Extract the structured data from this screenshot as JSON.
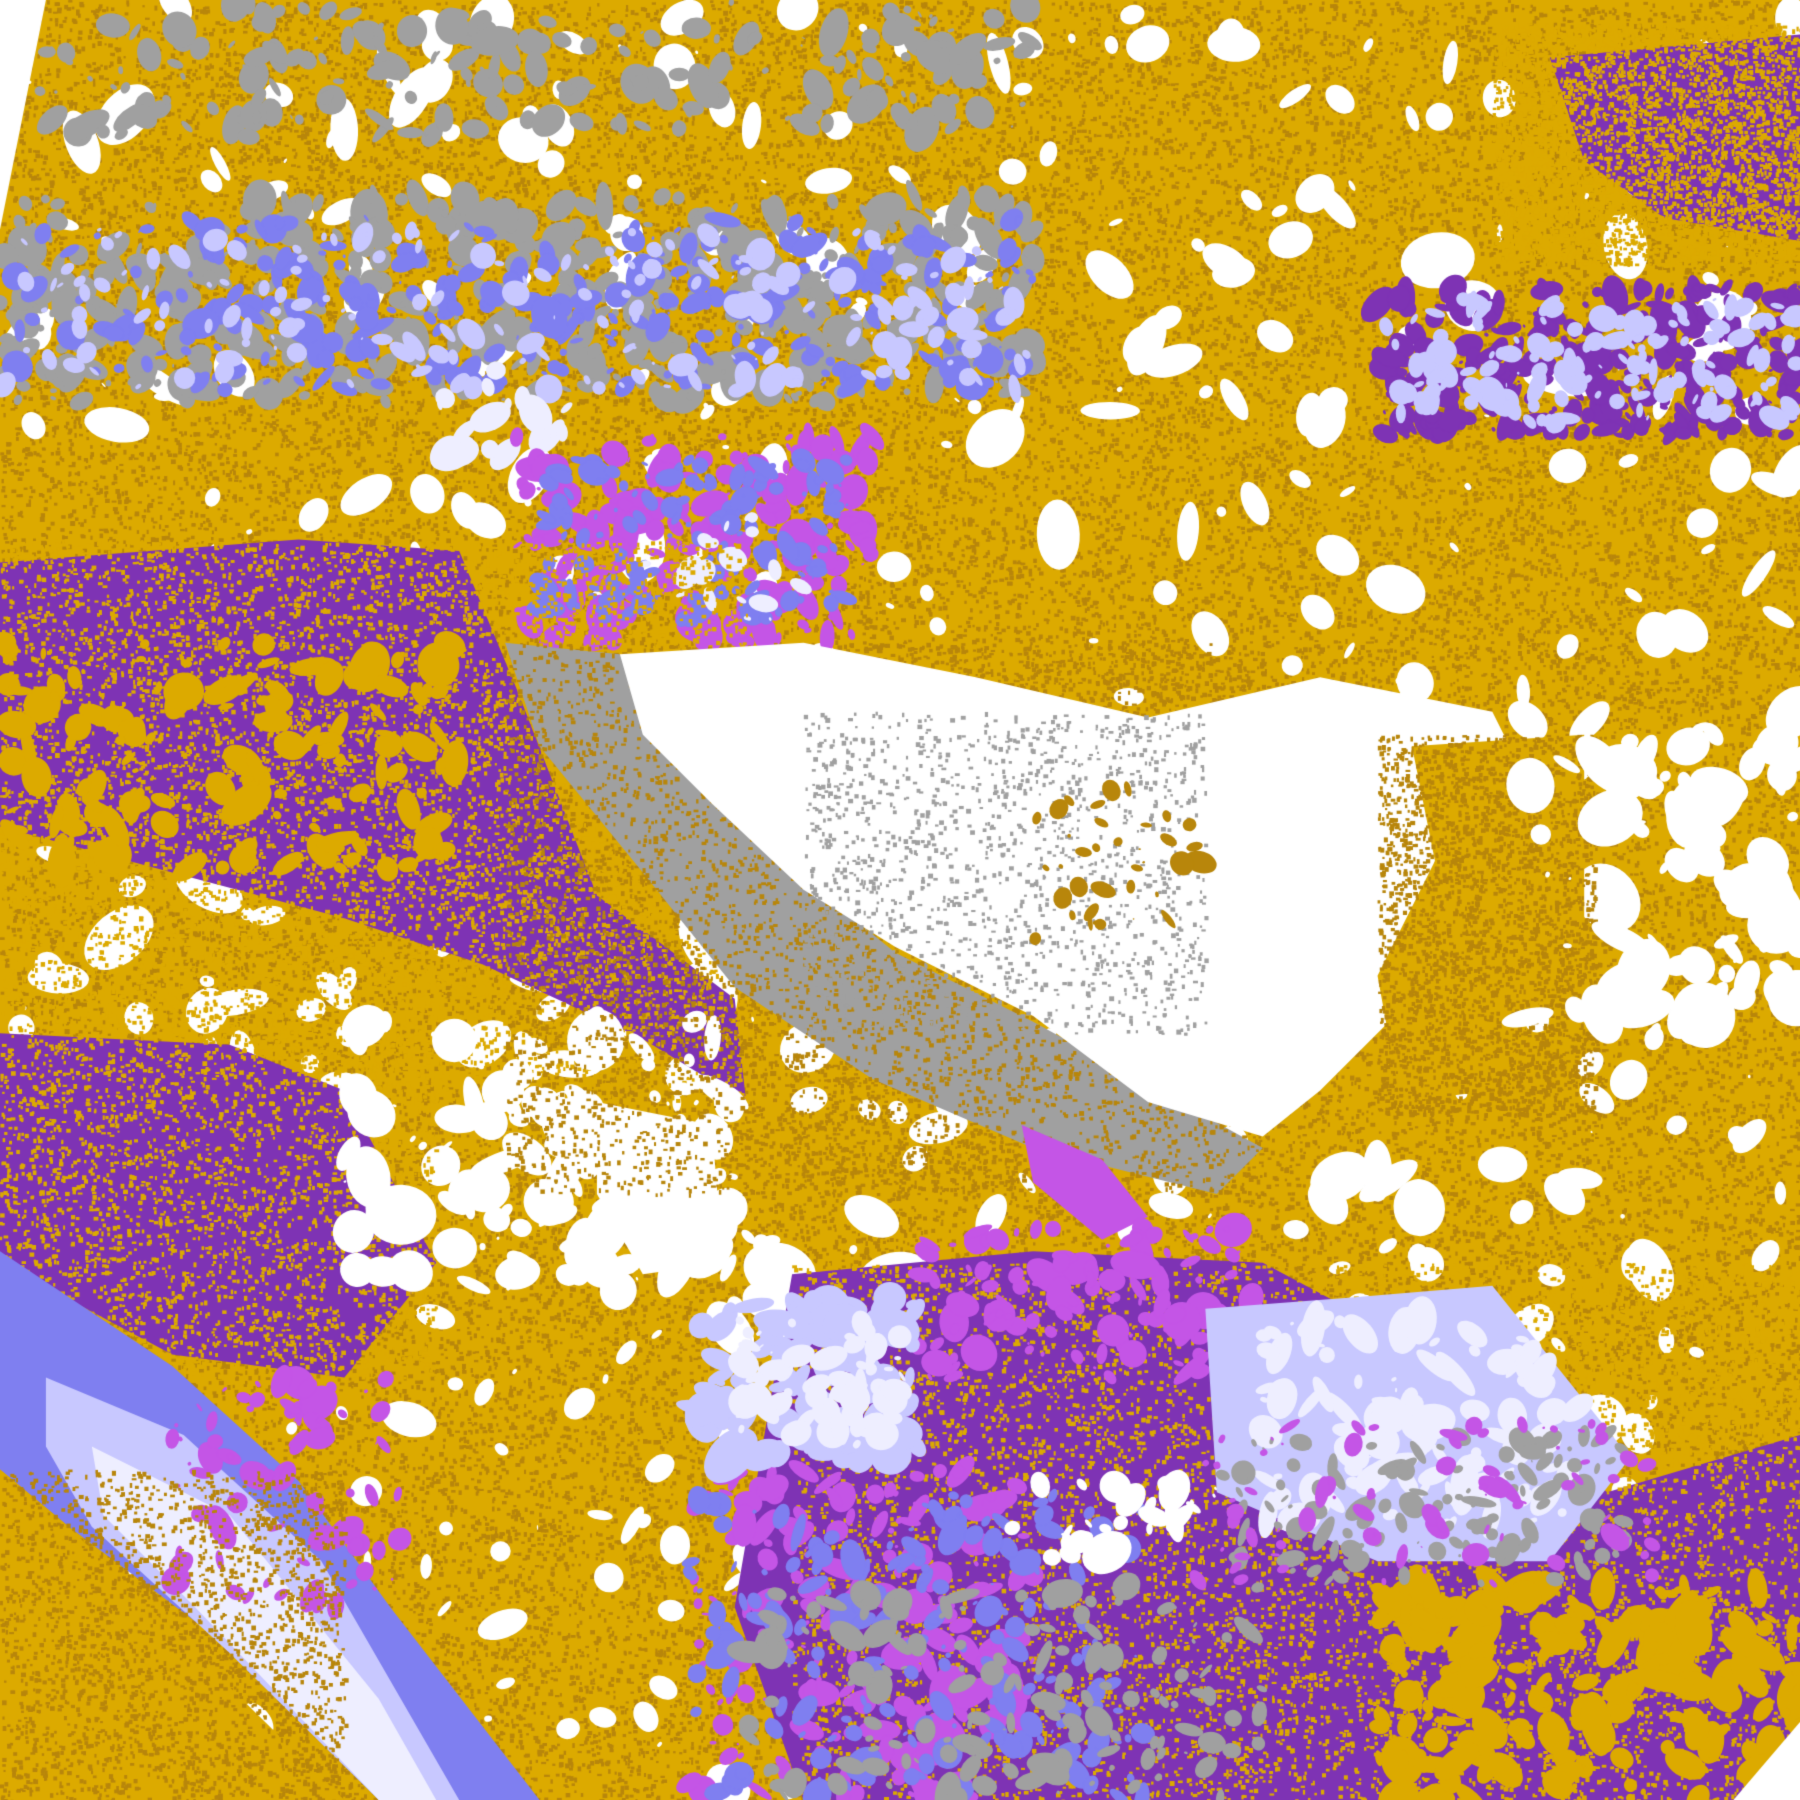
{
  "image": {
    "type": "classified-satellite-map",
    "palette": {
      "gold": "#dcaa00",
      "dark_gold": "#b8860b",
      "purple": "#7e33b4",
      "magenta": "#c455e6",
      "periwinkle": "#7f7ff0",
      "lavender": "#c8c8ff",
      "pale": "#eeeeff",
      "gray": "#a0a0a0",
      "white": "#ffffff"
    }
  }
}
